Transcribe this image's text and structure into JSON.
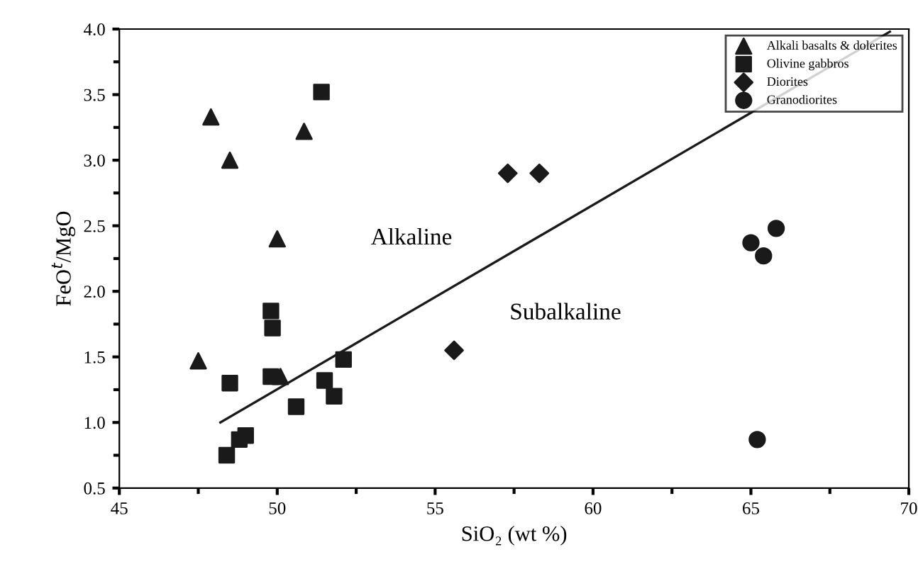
{
  "chart_data": {
    "type": "scatter",
    "xlabel": "SiO₂ (wt %)",
    "ylabel": "FeO$^{t}$/MgO",
    "xlim": [
      45,
      70
    ],
    "xticks": [
      45,
      50,
      55,
      60,
      65,
      70
    ],
    "ylim": [
      0.5,
      4.0
    ],
    "yticks": [
      {
        "value": 0.5,
        "label": "0.5"
      },
      {
        "value": 1.0,
        "label": "1.0"
      },
      {
        "value": 1.5,
        "label": "1.5"
      },
      {
        "value": 2.0,
        "label": "2.0"
      },
      {
        "value": 2.5,
        "label": "2.5"
      },
      {
        "value": 3.0,
        "label": "3.0"
      },
      {
        "value": 3.5,
        "label": "3.5"
      },
      {
        "value": 4.0,
        "label": "4.0"
      }
    ],
    "grid": false,
    "legend": "top right",
    "series": [
      {
        "name": "Alkali basalts & dolerites",
        "color": "#1a1a1a",
        "marker": "triangle",
        "x": [
          47.5,
          47.9,
          48.5,
          50.0,
          50.85,
          50.1
        ],
        "values": [
          1.47,
          3.33,
          3.0,
          2.4,
          3.22,
          1.35
        ]
      },
      {
        "name": "Olivine gabbros",
        "color": "#1a1a1a",
        "marker": "square",
        "x": [
          51.4,
          49.8,
          49.85,
          49.8,
          48.5,
          52.1,
          51.5,
          51.8,
          50.6,
          48.4,
          48.8,
          49.0
        ],
        "values": [
          3.52,
          1.85,
          1.72,
          1.35,
          1.3,
          1.48,
          1.32,
          1.2,
          1.12,
          0.75,
          0.87,
          0.9
        ]
      },
      {
        "name": "Diorites",
        "color": "#1a1a1a",
        "marker": "diamond",
        "x": [
          55.6,
          57.3,
          58.3
        ],
        "values": [
          1.55,
          2.9,
          2.9
        ]
      },
      {
        "name": "Granodiorites",
        "color": "#1a1a1a",
        "marker": "circle",
        "x": [
          65.0,
          65.4,
          65.8,
          65.2
        ],
        "values": [
          2.37,
          2.27,
          2.48,
          0.87
        ]
      },
      {
        "type": "line",
        "color": "#1a1a1a",
        "x": [
          48.2,
          69.4
        ],
        "values": [
          1.0,
          3.98
        ]
      }
    ],
    "annotations": [
      "Alkaline",
      "Subalkaline"
    ]
  }
}
